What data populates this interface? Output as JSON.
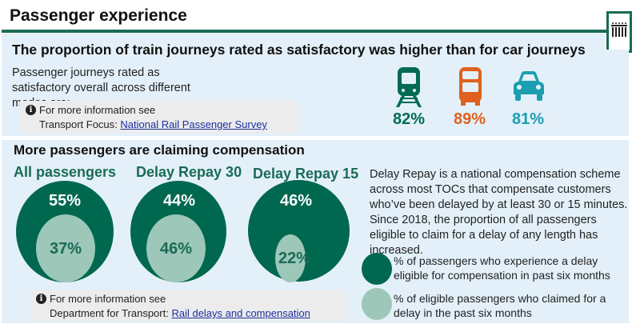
{
  "page_title": "Passenger experience",
  "section1": {
    "heading": "The proportion of train journeys rated as satisfactory was higher than for car journeys",
    "body": "Passenger journeys rated as satisfactory overall across different modes are:",
    "info_line1": "For more information see",
    "info_prefix": "Transport Focus: ",
    "info_link": "National Rail Passenger Survey",
    "modes": [
      {
        "icon": "train-icon",
        "value": "82%",
        "color": "#006b54"
      },
      {
        "icon": "bus-icon",
        "value": "89%",
        "color": "#e0601f"
      },
      {
        "icon": "car-icon",
        "value": "81%",
        "color": "#1b9fb0"
      }
    ]
  },
  "section2": {
    "heading": "More passengers are claiming compensation",
    "groups": [
      {
        "label": "All passengers",
        "eligible": "55%",
        "claimed": "37%"
      },
      {
        "label": "Delay Repay 30",
        "eligible": "44%",
        "claimed": "46%"
      },
      {
        "label": "Delay Repay 15",
        "eligible": "46%",
        "claimed": "22%"
      }
    ],
    "description": "Delay Repay is a national compensation scheme across most TOCs that compensate customers who’ve been delayed by at least 30 or 15 minutes. Since 2018, the proportion of all passengers eligible to claim for a delay of any length has increased.",
    "legend": [
      {
        "label": "% of passengers who experience a delay eligible for compensation in past six months",
        "color": "#00684f"
      },
      {
        "label": "% of  eligible passengers who claimed for a delay in the past six months",
        "color": "#9cc7b9"
      }
    ],
    "info_line1": "For more information see",
    "info_prefix": "Department for Transport: ",
    "info_link": "Rail delays and compensation"
  }
}
